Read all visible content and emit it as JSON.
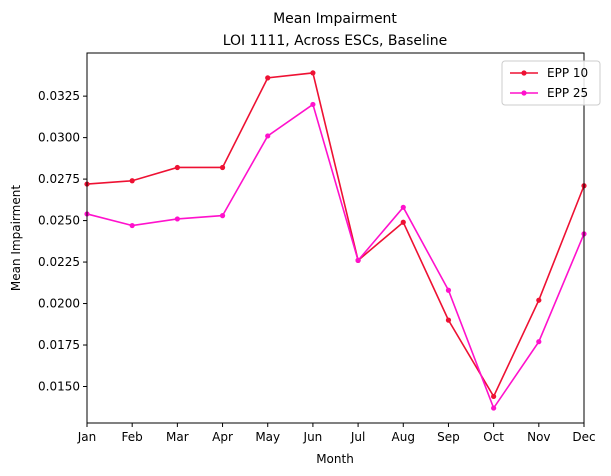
{
  "chart_data": {
    "type": "line",
    "title": "Mean Impairment",
    "subtitle": "LOI 1111, Across ESCs, Baseline",
    "xlabel": "Month",
    "ylabel": "Mean Impairment",
    "categories": [
      "Jan",
      "Feb",
      "Mar",
      "Apr",
      "May",
      "Jun",
      "Jul",
      "Aug",
      "Sep",
      "Oct",
      "Nov",
      "Dec"
    ],
    "ylim": [
      0.0128,
      0.0351
    ],
    "yticks": [
      "0.0150",
      "0.0175",
      "0.0200",
      "0.0225",
      "0.0250",
      "0.0275",
      "0.0300",
      "0.0325"
    ],
    "grid": false,
    "legend_position": "top-right",
    "series": [
      {
        "name": "EPP 10",
        "color": "#ee1133",
        "marker": "dot",
        "values": [
          0.0272,
          0.0274,
          0.0282,
          0.0282,
          0.0336,
          0.0339,
          0.0226,
          0.0249,
          0.019,
          0.0144,
          0.0202,
          0.0271
        ]
      },
      {
        "name": "EPP 25",
        "color": "#ff11cc",
        "marker": "dot",
        "values": [
          0.0254,
          0.0247,
          0.0251,
          0.0253,
          0.0301,
          0.032,
          0.0226,
          0.0258,
          0.0208,
          0.0137,
          0.0177,
          0.0242
        ]
      }
    ]
  }
}
